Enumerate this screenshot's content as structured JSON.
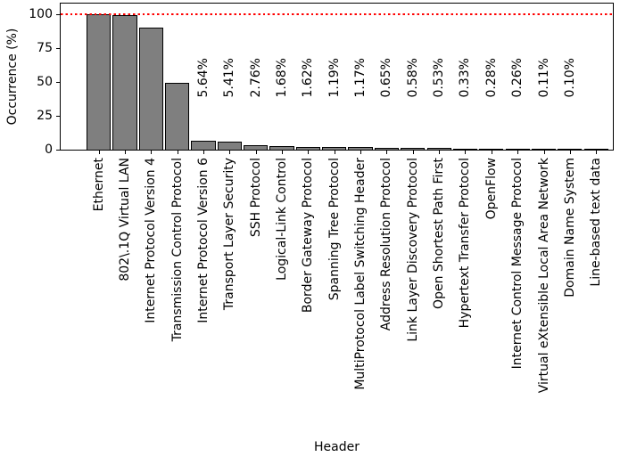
{
  "chart_data": {
    "type": "bar",
    "title": "",
    "xlabel": "Header",
    "ylabel": "Occurrence (%)",
    "ylim": [
      0,
      108
    ],
    "yticks": [
      0,
      25,
      50,
      75,
      100
    ],
    "grid": false,
    "legend": null,
    "reference_line": {
      "y": 100,
      "color": "#ff0000",
      "style": "dotted"
    },
    "bar_color": "#7f7f7f",
    "bar_edge_color": "#000000",
    "categories": [
      "Ethernet",
      "802\\.1Q Virtual LAN",
      "Internet Protocol Version 4",
      "Transmission Control Protocol",
      "Internet Protocol Version 6",
      "Transport Layer Security",
      "SSH Protocol",
      "Logical-Link Control",
      "Border Gateway Protocol",
      "Spanning Tree Protocol",
      "MultiProtocol Label Switching Header",
      "Address Resolution Protocol",
      "Link Layer Discovery Protocol",
      "Open Shortest Path First",
      "Hypertext Transfer Protocol",
      "OpenFlow",
      "Internet Control Message Protocol",
      "Virtual eXtensible Local Area Network",
      "Domain Name System",
      "Line-based text data"
    ],
    "values": [
      99.5,
      98.5,
      89.5,
      49.0,
      5.64,
      5.41,
      2.76,
      1.68,
      1.62,
      1.19,
      1.17,
      0.65,
      0.58,
      0.53,
      0.33,
      0.28,
      0.26,
      0.11,
      0.1,
      0.08
    ],
    "bar_labels": [
      "",
      "",
      "",
      "",
      "5.64%",
      "5.41%",
      "2.76%",
      "1.68%",
      "1.62%",
      "1.19%",
      "1.17%",
      "0.65%",
      "0.58%",
      "0.53%",
      "0.33%",
      "0.28%",
      "0.26%",
      "0.11%",
      "0.10%",
      ""
    ]
  }
}
